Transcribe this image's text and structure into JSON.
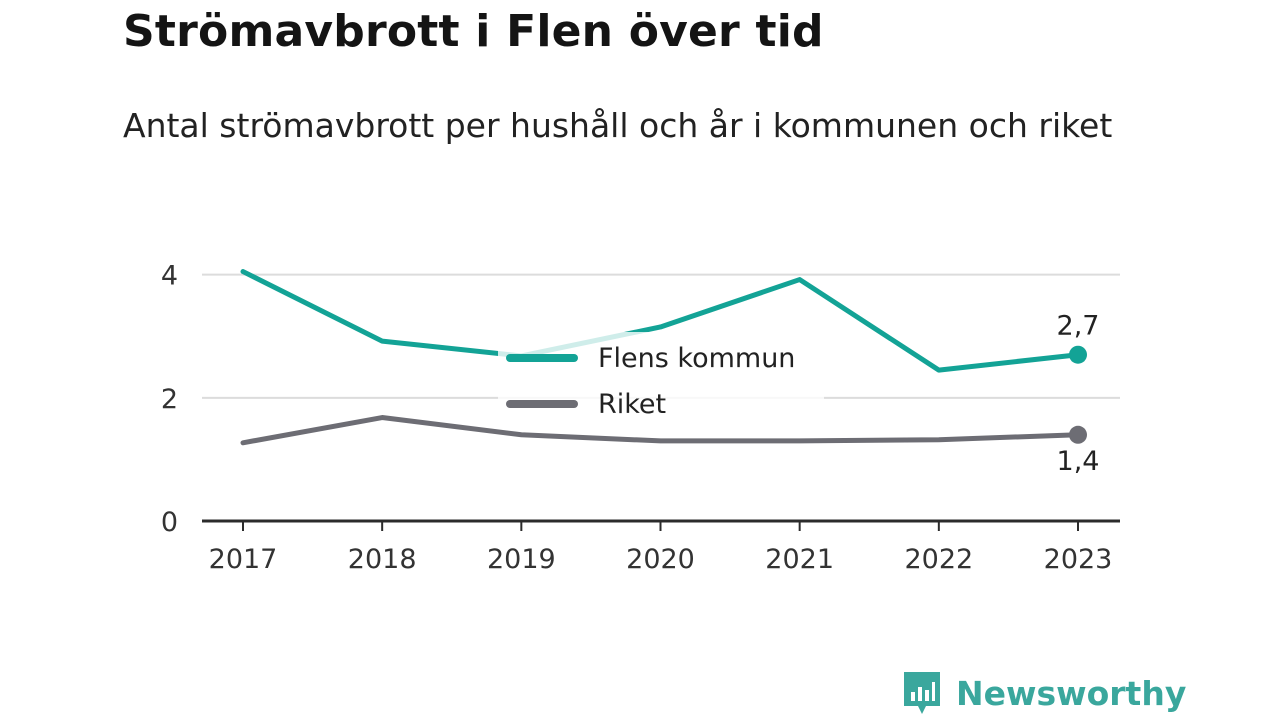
{
  "title": "Strömavbrott i Flen över tid",
  "subtitle": "Antal strömavbrott per hushåll och år i kommunen och riket",
  "brand": {
    "name": "Newsworthy",
    "color": "#3aa79d",
    "logo_icon": "bar-chart-speech-bubble-icon"
  },
  "chart_data": {
    "type": "line",
    "x": [
      "2017",
      "2018",
      "2019",
      "2020",
      "2021",
      "2022",
      "2023"
    ],
    "ylim": [
      0,
      4.4
    ],
    "yticks": [
      "0",
      "2",
      "4"
    ],
    "ytick_values": [
      0,
      2,
      4
    ],
    "grid": true,
    "legend_placement": "center",
    "series": [
      {
        "name": "Flens kommun",
        "color": "#13a396",
        "values": [
          4.05,
          2.92,
          2.68,
          3.15,
          3.92,
          2.45,
          2.7
        ],
        "end_label": "2,7"
      },
      {
        "name": "Riket",
        "color": "#6d6d74",
        "values": [
          1.27,
          1.68,
          1.4,
          1.3,
          1.3,
          1.32,
          1.4
        ],
        "end_label": "1,4"
      }
    ]
  }
}
